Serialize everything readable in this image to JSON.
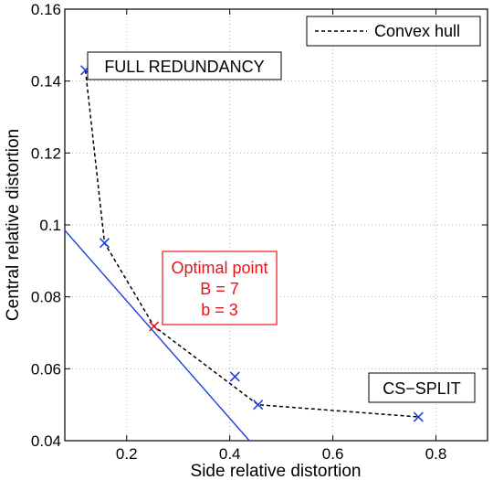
{
  "chart_data": {
    "type": "scatter",
    "xlabel": "Side relative distortion",
    "ylabel": "Central relative distortion",
    "xlim": [
      0.08,
      0.9
    ],
    "ylim": [
      0.04,
      0.16
    ],
    "xticks": [
      "0.2",
      "0.4",
      "0.6",
      "0.8"
    ],
    "xtick_values": [
      0.2,
      0.4,
      0.6,
      0.8
    ],
    "yticks": [
      "0.04",
      "0.06",
      "0.08",
      "0.1",
      "0.12",
      "0.14",
      "0.16"
    ],
    "ytick_values": [
      0.04,
      0.06,
      0.08,
      0.1,
      0.12,
      0.14,
      0.16
    ],
    "grid": true,
    "legend": {
      "position": "top-right",
      "entries": [
        "Convex hull"
      ]
    },
    "series": [
      {
        "name": "Convex hull",
        "style": "dashed",
        "color": "#000000",
        "points": [
          [
            0.12,
            0.143
          ],
          [
            0.157,
            0.095
          ],
          [
            0.253,
            0.0718
          ],
          [
            0.455,
            0.05
          ],
          [
            0.766,
            0.0466
          ]
        ]
      }
    ],
    "markers": [
      {
        "x": 0.12,
        "y": 0.143,
        "color": "#1f3fdc"
      },
      {
        "x": 0.157,
        "y": 0.095,
        "color": "#1f3fdc"
      },
      {
        "x": 0.253,
        "y": 0.0718,
        "color": "#e8141c"
      },
      {
        "x": 0.41,
        "y": 0.0578,
        "color": "#1f3fdc"
      },
      {
        "x": 0.455,
        "y": 0.05,
        "color": "#1f3fdc"
      },
      {
        "x": 0.766,
        "y": 0.0466,
        "color": "#1f3fdc"
      }
    ],
    "tangent_line": {
      "color": "#1f3fdc",
      "points": [
        [
          0.08,
          0.0985
        ],
        [
          0.438,
          0.04
        ]
      ]
    },
    "annotations": {
      "full_redundancy": "FULL REDUNDANCY",
      "cs_split": "CS−SPLIT",
      "optimal": [
        "Optimal point",
        "B = 7",
        "b = 3"
      ]
    }
  }
}
